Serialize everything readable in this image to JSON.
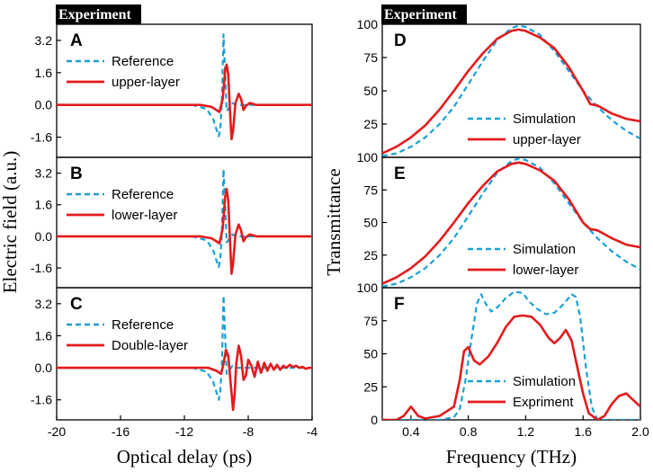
{
  "chart_data": [
    {
      "id": "A",
      "type": "line",
      "side": "left",
      "header": "Experiment",
      "panel_letter": "A",
      "xlim": [
        -20,
        -4
      ],
      "ylim": [
        -2.6,
        4.0
      ],
      "yticks": [
        "3.2",
        "1.6",
        "0.0",
        "-1.6"
      ],
      "ytick_values": [
        3.2,
        1.6,
        0.0,
        -1.6
      ],
      "legend": [
        "Reference",
        "upper-layer"
      ],
      "series": [
        {
          "name": "Reference",
          "style": "dashed",
          "color": "#1aa0d6",
          "x": [
            -20,
            -11.5,
            -10.6,
            -10.2,
            -10.0,
            -9.85,
            -9.75,
            -9.65,
            -9.55,
            -9.45,
            -9.35,
            -9.2,
            -9.0,
            -8.8,
            -8.5,
            -8.0,
            -4
          ],
          "y": [
            0,
            0,
            -0.2,
            -0.7,
            -1.2,
            -1.55,
            -1.2,
            0.2,
            3.5,
            1.6,
            -0.3,
            -0.15,
            0.1,
            0,
            0,
            0,
            0
          ]
        },
        {
          "name": "upper-layer",
          "style": "solid",
          "color": "#e41a1c",
          "x": [
            -20,
            -11.0,
            -10.3,
            -10.0,
            -9.8,
            -9.6,
            -9.45,
            -9.35,
            -9.25,
            -9.15,
            -9.05,
            -8.95,
            -8.8,
            -8.6,
            -8.45,
            -8.3,
            -8.15,
            -7.9,
            -7.5,
            -4
          ],
          "y": [
            0,
            0,
            -0.1,
            -0.25,
            -0.35,
            0.3,
            1.7,
            2.0,
            1.5,
            -0.2,
            -1.7,
            -1.3,
            0.1,
            0.55,
            0.3,
            -0.25,
            -0.05,
            0.1,
            0,
            0
          ]
        }
      ]
    },
    {
      "id": "B",
      "type": "line",
      "side": "left",
      "panel_letter": "B",
      "xlim": [
        -20,
        -4
      ],
      "ylim": [
        -2.6,
        4.0
      ],
      "yticks": [
        "3.2",
        "1.6",
        "0.0",
        "-1.6"
      ],
      "ytick_values": [
        3.2,
        1.6,
        0.0,
        -1.6
      ],
      "legend": [
        "Reference",
        "lower-layer"
      ],
      "series": [
        {
          "name": "Reference",
          "style": "dashed",
          "color": "#1aa0d6",
          "x": [
            -20,
            -11.5,
            -10.6,
            -10.2,
            -10.0,
            -9.85,
            -9.75,
            -9.65,
            -9.55,
            -9.45,
            -9.35,
            -9.2,
            -9.0,
            -8.8,
            -8.5,
            -8.0,
            -4
          ],
          "y": [
            0,
            0,
            -0.2,
            -0.7,
            -1.2,
            -1.55,
            -1.2,
            0.2,
            3.4,
            1.6,
            -0.3,
            -0.15,
            0.1,
            0,
            0,
            0,
            0
          ]
        },
        {
          "name": "lower-layer",
          "style": "solid",
          "color": "#e41a1c",
          "x": [
            -20,
            -11.0,
            -10.3,
            -10.0,
            -9.8,
            -9.6,
            -9.45,
            -9.35,
            -9.25,
            -9.15,
            -9.05,
            -8.95,
            -8.8,
            -8.6,
            -8.45,
            -8.3,
            -8.15,
            -7.9,
            -7.5,
            -4
          ],
          "y": [
            0,
            0,
            -0.1,
            -0.25,
            -0.35,
            0.4,
            2.0,
            2.4,
            1.8,
            -0.1,
            -1.9,
            -1.4,
            0.1,
            0.6,
            0.3,
            -0.25,
            -0.05,
            0.1,
            0,
            0
          ]
        }
      ]
    },
    {
      "id": "C",
      "type": "line",
      "side": "left",
      "panel_letter": "C",
      "xlim": [
        -20,
        -4
      ],
      "ylim": [
        -2.6,
        4.0
      ],
      "yticks": [
        "3.2",
        "1.6",
        "0.0",
        "-1.6"
      ],
      "ytick_values": [
        3.2,
        1.6,
        0.0,
        -1.6
      ],
      "xticks": [
        "-20",
        "-16",
        "-12",
        "-8",
        "-4"
      ],
      "xtick_values": [
        -20,
        -16,
        -12,
        -8,
        -4
      ],
      "xlabel": "Optical delay (ps)",
      "legend": [
        "Reference",
        "Double-layer"
      ],
      "series": [
        {
          "name": "Reference",
          "style": "dashed",
          "color": "#1aa0d6",
          "x": [
            -20,
            -11.5,
            -10.6,
            -10.2,
            -10.0,
            -9.85,
            -9.75,
            -9.65,
            -9.55,
            -9.45,
            -9.35,
            -9.2,
            -9.0,
            -8.8,
            -8.5,
            -8.0,
            -4
          ],
          "y": [
            0,
            0,
            -0.2,
            -0.7,
            -1.2,
            -1.6,
            -1.2,
            0.2,
            3.6,
            1.6,
            -0.3,
            -0.15,
            0.1,
            0,
            0,
            0,
            0
          ]
        },
        {
          "name": "Double-layer",
          "style": "solid",
          "color": "#e41a1c",
          "x": [
            -20,
            -10.5,
            -10.0,
            -9.7,
            -9.55,
            -9.4,
            -9.25,
            -9.1,
            -8.95,
            -8.85,
            -8.75,
            -8.6,
            -8.45,
            -8.3,
            -8.15,
            -8.0,
            -7.8,
            -7.6,
            -7.4,
            -7.2,
            -7.0,
            -6.8,
            -6.6,
            -6.4,
            -6.2,
            -6.0,
            -5.8,
            -5.6,
            -5.4,
            -5.2,
            -5.0,
            -4.8,
            -4.6,
            -4.4,
            -4.2,
            -4
          ],
          "y": [
            0,
            0,
            -0.15,
            -0.3,
            0.2,
            0.9,
            0.6,
            -0.8,
            -2.1,
            -1.3,
            0.2,
            1.1,
            0.6,
            -0.6,
            -0.4,
            0.4,
            0.1,
            -0.45,
            0.3,
            -0.25,
            0.25,
            -0.15,
            0.2,
            -0.1,
            0.15,
            -0.1,
            0.1,
            0.0,
            0.15,
            0.05,
            0.1,
            0.0,
            0.05,
            -0.05,
            0.0,
            0.0
          ]
        }
      ]
    },
    {
      "id": "D",
      "type": "line",
      "side": "right",
      "header": "Experiment",
      "panel_letter": "D",
      "xlim": [
        0.2,
        2.0
      ],
      "ylim": [
        0,
        100
      ],
      "yticks": [
        "100",
        "75",
        "50",
        "25"
      ],
      "ytick_values": [
        100,
        75,
        50,
        25
      ],
      "legend": [
        "Simulation",
        "upper-layer"
      ],
      "series": [
        {
          "name": "Simulation",
          "style": "dashed",
          "color": "#1aa0d6",
          "x": [
            0.2,
            0.3,
            0.4,
            0.5,
            0.6,
            0.7,
            0.8,
            0.9,
            1.0,
            1.1,
            1.15,
            1.2,
            1.3,
            1.4,
            1.5,
            1.6,
            1.7,
            1.8,
            1.9,
            2.0
          ],
          "y": [
            1,
            3,
            8,
            15,
            25,
            38,
            55,
            72,
            88,
            97,
            99,
            98,
            92,
            80,
            65,
            50,
            38,
            28,
            20,
            14
          ]
        },
        {
          "name": "upper-layer",
          "style": "solid",
          "color": "#e41a1c",
          "x": [
            0.2,
            0.3,
            0.4,
            0.5,
            0.6,
            0.7,
            0.8,
            0.9,
            1.0,
            1.1,
            1.15,
            1.2,
            1.3,
            1.4,
            1.5,
            1.6,
            1.65,
            1.7,
            1.8,
            1.9,
            2.0
          ],
          "y": [
            3,
            8,
            15,
            24,
            36,
            50,
            65,
            78,
            89,
            95,
            96,
            95,
            90,
            82,
            68,
            50,
            40,
            39,
            33,
            29,
            27
          ]
        }
      ]
    },
    {
      "id": "E",
      "type": "line",
      "side": "right",
      "panel_letter": "E",
      "xlim": [
        0.2,
        2.0
      ],
      "ylim": [
        0,
        100
      ],
      "yticks": [
        "100",
        "75",
        "50",
        "25"
      ],
      "ytick_values": [
        100,
        75,
        50,
        25
      ],
      "legend": [
        "Simulation",
        "lower-layer"
      ],
      "series": [
        {
          "name": "Simulation",
          "style": "dashed",
          "color": "#1aa0d6",
          "x": [
            0.2,
            0.3,
            0.4,
            0.5,
            0.6,
            0.7,
            0.8,
            0.9,
            1.0,
            1.1,
            1.15,
            1.2,
            1.3,
            1.4,
            1.5,
            1.6,
            1.7,
            1.8,
            1.9,
            2.0
          ],
          "y": [
            1,
            3,
            8,
            15,
            25,
            38,
            55,
            72,
            88,
            97,
            99,
            98,
            92,
            80,
            65,
            50,
            38,
            28,
            20,
            14
          ]
        },
        {
          "name": "lower-layer",
          "style": "solid",
          "color": "#e41a1c",
          "x": [
            0.2,
            0.3,
            0.4,
            0.5,
            0.6,
            0.7,
            0.8,
            0.9,
            1.0,
            1.1,
            1.15,
            1.2,
            1.3,
            1.4,
            1.5,
            1.6,
            1.65,
            1.7,
            1.8,
            1.9,
            2.0
          ],
          "y": [
            3,
            8,
            15,
            24,
            36,
            50,
            65,
            78,
            89,
            95,
            96,
            95,
            90,
            82,
            68,
            50,
            45,
            44,
            38,
            33,
            31
          ]
        }
      ]
    },
    {
      "id": "F",
      "type": "line",
      "side": "right",
      "panel_letter": "F",
      "xlim": [
        0.2,
        2.0
      ],
      "ylim": [
        0,
        100
      ],
      "yticks": [
        "100",
        "75",
        "50",
        "25",
        "0"
      ],
      "ytick_values": [
        100,
        75,
        50,
        25,
        0
      ],
      "xticks": [
        "0.4",
        "0.8",
        "1.2",
        "1.6",
        "2.0"
      ],
      "xtick_values": [
        0.4,
        0.8,
        1.2,
        1.6,
        2.0
      ],
      "xlabel": "Frequency (THz)",
      "legend": [
        "Simulation",
        "Expriment"
      ],
      "series": [
        {
          "name": "Simulation",
          "style": "dashed",
          "color": "#1aa0d6",
          "x": [
            0.2,
            0.6,
            0.7,
            0.74,
            0.78,
            0.82,
            0.86,
            0.89,
            0.92,
            0.96,
            1.0,
            1.06,
            1.12,
            1.18,
            1.22,
            1.28,
            1.34,
            1.4,
            1.46,
            1.52,
            1.55,
            1.58,
            1.62,
            1.66,
            1.7,
            2.0
          ],
          "y": [
            0,
            0,
            2,
            8,
            30,
            60,
            88,
            95,
            88,
            82,
            85,
            92,
            97,
            96,
            90,
            84,
            80,
            81,
            87,
            95,
            93,
            78,
            40,
            10,
            0,
            0
          ]
        },
        {
          "name": "Expriment",
          "style": "solid",
          "color": "#e41a1c",
          "x": [
            0.2,
            0.3,
            0.35,
            0.4,
            0.45,
            0.5,
            0.6,
            0.7,
            0.74,
            0.77,
            0.8,
            0.84,
            0.88,
            0.94,
            1.0,
            1.06,
            1.12,
            1.18,
            1.24,
            1.3,
            1.36,
            1.4,
            1.44,
            1.48,
            1.52,
            1.56,
            1.6,
            1.64,
            1.7,
            1.75,
            1.8,
            1.85,
            1.9,
            1.95,
            2.0
          ],
          "y": [
            0,
            0,
            3,
            10,
            3,
            1,
            3,
            10,
            30,
            52,
            55,
            45,
            42,
            48,
            58,
            70,
            78,
            79,
            78,
            72,
            62,
            58,
            62,
            68,
            60,
            40,
            20,
            5,
            0,
            3,
            12,
            18,
            20,
            15,
            10
          ]
        }
      ]
    }
  ],
  "axes_labels": {
    "left_ylabel": "Electric field (a.u.)",
    "right_ylabel": "Transmittance"
  },
  "colors": {
    "reference": "#1aa0d6",
    "sample": "#e41a1c"
  }
}
